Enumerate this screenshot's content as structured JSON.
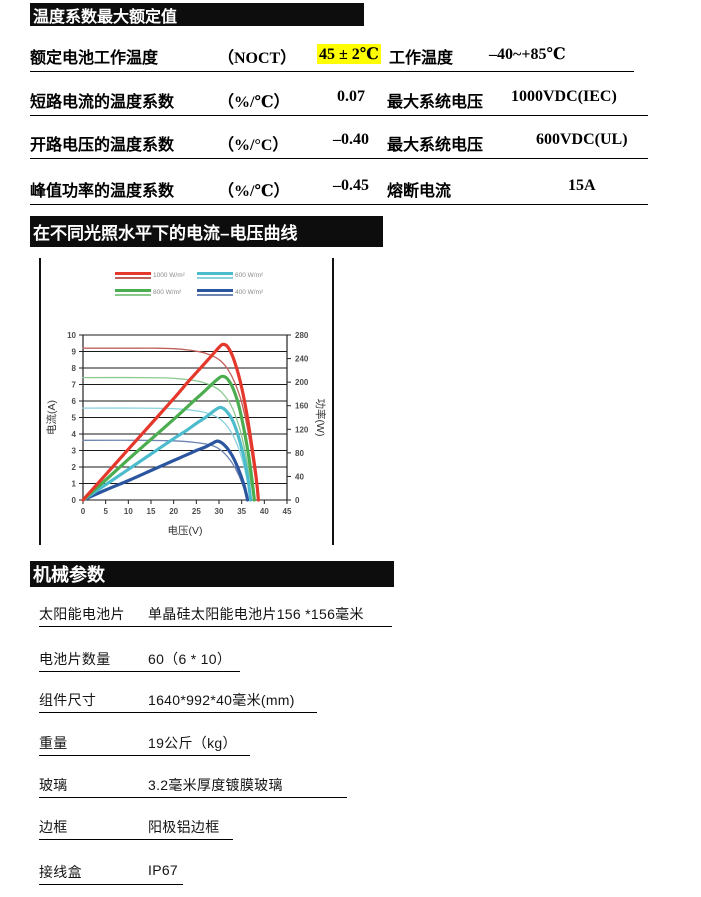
{
  "colors": {
    "header_bar_bg": "#0d0d0d",
    "highlight": "#ffff00",
    "grid": "#1a1a1a",
    "tick_text": "#4d4d4d",
    "axis_text": "#333333",
    "legend_text": "#8a8a8a"
  },
  "sections": {
    "temp_header": "温度系数最大额定值",
    "temp_rows": [
      {
        "label": "额定电池工作温度",
        "unit": "（NOCT）",
        "value": "45 ± 2℃",
        "label2": "工作温度",
        "value2": "–40~+85℃"
      },
      {
        "label": "短路电流的温度系数",
        "unit": "（%/℃）",
        "value": "0.07",
        "label2": "最大系统电压",
        "value2": "1000VDC(IEC)"
      },
      {
        "label": "开路电压的温度系数",
        "unit": "（%/°C）",
        "value": "–0.40",
        "label2": "最大系统电压",
        "value2": "600VDC(UL)"
      },
      {
        "label": "峰值功率的温度系数",
        "unit": "（%/℃）",
        "value": "–0.45",
        "label2": "熔断电流",
        "value2": "15A"
      }
    ],
    "curve_header": "在不同光照水平下的电流–电压曲线",
    "mech_header": "机械参数",
    "mech_rows": [
      {
        "label": "太阳能电池片",
        "value": "单晶硅太阳能电池片156 *156毫米"
      },
      {
        "label": "电池片数量",
        "value": "60（6 * 10）"
      },
      {
        "label": "组件尺寸",
        "value": "1640*992*40毫米(mm)"
      },
      {
        "label": "重量",
        "value": "19公斤（kg）"
      },
      {
        "label": "玻璃",
        "value": "3.2毫米厚度镀膜玻璃"
      },
      {
        "label": "边框",
        "value": "阳极铝边框"
      },
      {
        "label": "接线盒",
        "value": "IP67"
      }
    ]
  },
  "chart_data": {
    "type": "line",
    "title": "",
    "xlabel": "电压(V)",
    "ylabel_left": "电流(A)",
    "ylabel_right": "功率(W)",
    "xlim": [
      0,
      45
    ],
    "ylim_left": [
      0,
      10
    ],
    "ylim_right": [
      0,
      280
    ],
    "x_ticks": [
      0,
      5,
      10,
      15,
      20,
      25,
      30,
      35,
      40,
      45
    ],
    "y_left_ticks": [
      0,
      1,
      2,
      3,
      4,
      5,
      6,
      7,
      8,
      9,
      10
    ],
    "y_right_ticks": [
      0,
      40,
      80,
      120,
      160,
      200,
      240,
      280
    ],
    "grid": "horizontal",
    "legend_position": "top-left",
    "series": [
      {
        "name": "1000 W/m²",
        "color_power": "#e5382c",
        "color_current": "#c0605a",
        "isc_A": 9.2,
        "voc_V": 38.7,
        "pmax_W": 264,
        "vmp_V": 30.8,
        "iv_points": [
          [
            0,
            9.2
          ],
          [
            10,
            9.2
          ],
          [
            16,
            9.2
          ],
          [
            20,
            9.17
          ],
          [
            23,
            9.1
          ],
          [
            25,
            9.02
          ],
          [
            27,
            8.9
          ],
          [
            29,
            8.68
          ],
          [
            30.5,
            8.4
          ],
          [
            32,
            7.9
          ],
          [
            33.5,
            7.1
          ],
          [
            35,
            5.9
          ],
          [
            36.3,
            4.3
          ],
          [
            37.5,
            2.3
          ],
          [
            38.7,
            0
          ]
        ],
        "pv_points": [
          [
            0,
            0
          ],
          [
            5,
            43
          ],
          [
            10,
            86
          ],
          [
            15,
            129
          ],
          [
            20,
            172
          ],
          [
            23,
            199
          ],
          [
            25,
            216
          ],
          [
            27,
            233
          ],
          [
            28.5,
            246
          ],
          [
            30,
            259
          ],
          [
            30.8,
            264
          ],
          [
            31.8,
            261
          ],
          [
            33,
            244
          ],
          [
            34.5,
            207
          ],
          [
            36,
            152
          ],
          [
            37.3,
            88
          ],
          [
            38.2,
            38
          ],
          [
            38.7,
            0
          ]
        ]
      },
      {
        "name": "800 W/m²",
        "color_power": "#4bad4f",
        "color_current": "#8cc98f",
        "isc_A": 7.4,
        "voc_V": 37.8,
        "pmax_W": 210,
        "vmp_V": 30.8,
        "iv_points": [
          [
            0,
            7.42
          ],
          [
            12,
            7.42
          ],
          [
            18,
            7.4
          ],
          [
            22,
            7.33
          ],
          [
            25,
            7.22
          ],
          [
            27,
            7.08
          ],
          [
            29,
            6.85
          ],
          [
            30.5,
            6.55
          ],
          [
            32,
            6.05
          ],
          [
            33.3,
            5.35
          ],
          [
            34.6,
            4.3
          ],
          [
            35.8,
            2.9
          ],
          [
            37,
            1.1
          ],
          [
            37.8,
            0
          ]
        ],
        "pv_points": [
          [
            0,
            0
          ],
          [
            5,
            34
          ],
          [
            10,
            69
          ],
          [
            15,
            103
          ],
          [
            20,
            137
          ],
          [
            23,
            158
          ],
          [
            25,
            172
          ],
          [
            27,
            186
          ],
          [
            28.5,
            197
          ],
          [
            30,
            207
          ],
          [
            30.8,
            210
          ],
          [
            31.8,
            206
          ],
          [
            33,
            191
          ],
          [
            34.3,
            162
          ],
          [
            35.6,
            116
          ],
          [
            36.8,
            62
          ],
          [
            37.8,
            0
          ]
        ]
      },
      {
        "name": "600 W/m²",
        "color_power": "#4cbccd",
        "color_current": "#8ad2de",
        "isc_A": 5.55,
        "voc_V": 37.0,
        "pmax_W": 157,
        "vmp_V": 30.5,
        "iv_points": [
          [
            0,
            5.57
          ],
          [
            12,
            5.57
          ],
          [
            18,
            5.55
          ],
          [
            22,
            5.5
          ],
          [
            25,
            5.4
          ],
          [
            27,
            5.3
          ],
          [
            29,
            5.1
          ],
          [
            30.5,
            4.85
          ],
          [
            32,
            4.4
          ],
          [
            33.3,
            3.8
          ],
          [
            34.5,
            3.0
          ],
          [
            35.7,
            1.85
          ],
          [
            36.6,
            0.7
          ],
          [
            37,
            0
          ]
        ],
        "pv_points": [
          [
            0,
            0
          ],
          [
            5,
            26
          ],
          [
            10,
            52
          ],
          [
            15,
            78
          ],
          [
            20,
            104
          ],
          [
            23,
            119
          ],
          [
            25,
            130
          ],
          [
            27,
            140
          ],
          [
            28.5,
            149
          ],
          [
            29.8,
            156
          ],
          [
            30.5,
            157
          ],
          [
            31.5,
            152
          ],
          [
            32.8,
            138
          ],
          [
            34,
            115
          ],
          [
            35.3,
            79
          ],
          [
            36.3,
            40
          ],
          [
            37,
            0
          ]
        ]
      },
      {
        "name": "400 W/m²",
        "color_power": "#2c55a0",
        "color_current": "#6d83b0",
        "isc_A": 3.6,
        "voc_V": 36.3,
        "pmax_W": 100,
        "vmp_V": 29.6,
        "iv_points": [
          [
            0,
            3.62
          ],
          [
            12,
            3.62
          ],
          [
            18,
            3.6
          ],
          [
            22,
            3.56
          ],
          [
            25,
            3.48
          ],
          [
            27,
            3.4
          ],
          [
            29,
            3.25
          ],
          [
            30.5,
            3.0
          ],
          [
            31.8,
            2.65
          ],
          [
            33,
            2.2
          ],
          [
            34.2,
            1.6
          ],
          [
            35.3,
            0.85
          ],
          [
            36.3,
            0
          ]
        ],
        "pv_points": [
          [
            0,
            0
          ],
          [
            5,
            17
          ],
          [
            10,
            33
          ],
          [
            15,
            50
          ],
          [
            20,
            67
          ],
          [
            23,
            77
          ],
          [
            25,
            84
          ],
          [
            27,
            90
          ],
          [
            28.5,
            96
          ],
          [
            29.6,
            100
          ],
          [
            30.6,
            97
          ],
          [
            31.8,
            88
          ],
          [
            33,
            74
          ],
          [
            34.3,
            52
          ],
          [
            35.5,
            26
          ],
          [
            36.3,
            0
          ]
        ]
      }
    ]
  }
}
